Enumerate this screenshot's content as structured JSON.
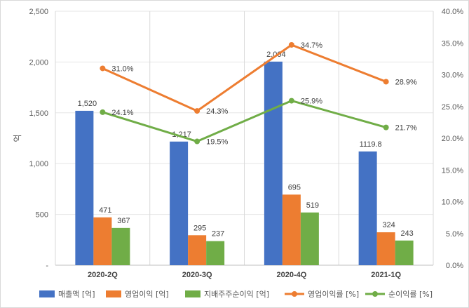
{
  "chart_data": {
    "type": "bar",
    "categories": [
      "2020-2Q",
      "2020-3Q",
      "2020-4Q",
      "2021-1Q"
    ],
    "ylabel": "억",
    "ylim": [
      0,
      2500
    ],
    "y_ticks": [
      "-",
      "500",
      "1,000",
      "1,500",
      "2,000",
      "2,500"
    ],
    "y2lim": [
      0,
      40
    ],
    "y2_ticks": [
      "0.0%",
      "5.0%",
      "10.0%",
      "15.0%",
      "20.0%",
      "25.0%",
      "30.0%",
      "35.0%",
      "40.0%"
    ],
    "grid": true,
    "legend_position": "bottom",
    "series": [
      {
        "name": "매출액 [억]",
        "type": "bar",
        "axis": "left",
        "color": "#4472C4",
        "values": [
          1520,
          1217,
          2004,
          1119.8
        ],
        "labels": [
          "1,520",
          "1,217",
          "2,004",
          "1119.8"
        ]
      },
      {
        "name": "영업이익 [억]",
        "type": "bar",
        "axis": "left",
        "color": "#ED7D31",
        "values": [
          471,
          295,
          695,
          324
        ],
        "labels": [
          "471",
          "295",
          "695",
          "324"
        ]
      },
      {
        "name": "지배주주순이익 [억]",
        "type": "bar",
        "axis": "left",
        "color": "#70AD47",
        "values": [
          367,
          237,
          519,
          243
        ],
        "labels": [
          "367",
          "237",
          "519",
          "243"
        ]
      },
      {
        "name": "영업이익률 [%]",
        "type": "line",
        "axis": "right",
        "color": "#ED7D31",
        "values": [
          31.0,
          24.3,
          34.7,
          28.9
        ],
        "labels": [
          "31.0%",
          "24.3%",
          "34.7%",
          "28.9%"
        ]
      },
      {
        "name": "순이익률 [%]",
        "type": "line",
        "axis": "right",
        "color": "#70AD47",
        "values": [
          24.1,
          19.5,
          25.9,
          21.7
        ],
        "labels": [
          "24.1%",
          "19.5%",
          "25.9%",
          "21.7%"
        ]
      }
    ]
  }
}
